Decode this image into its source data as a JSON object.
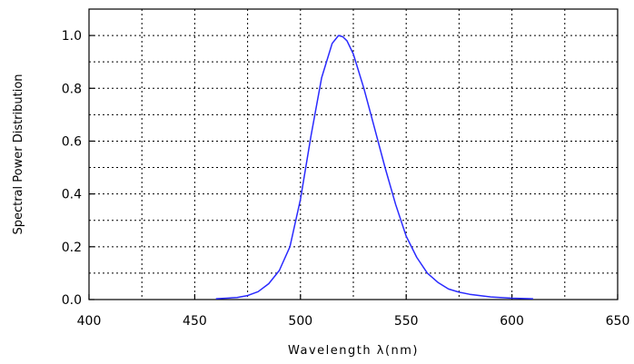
{
  "chart_data": {
    "type": "line",
    "title": "",
    "xlabel": "Wavelength λ(nm)",
    "ylabel": "Spectral Power Distribution",
    "xlim": [
      400,
      650
    ],
    "ylim": [
      0,
      1.1
    ],
    "x_ticks": [
      400,
      450,
      500,
      550,
      600,
      650
    ],
    "x_tick_labels": [
      "400",
      "450",
      "500",
      "550",
      "600",
      "650"
    ],
    "y_ticks": [
      0.0,
      0.2,
      0.4,
      0.6,
      0.8,
      1.0
    ],
    "y_tick_labels": [
      "0.0",
      "0.2",
      "0.4",
      "0.6",
      "0.8",
      "1.0"
    ],
    "grid": true,
    "grid_style": "dotted",
    "legend": "none",
    "series": [
      {
        "color": "#2a2aff",
        "x": [
          460,
          465,
          470,
          475,
          480,
          485,
          490,
          495,
          500,
          505,
          510,
          515,
          518,
          520,
          522,
          525,
          530,
          535,
          540,
          545,
          550,
          555,
          560,
          565,
          570,
          575,
          580,
          590,
          600,
          610
        ],
        "y": [
          0.003,
          0.005,
          0.008,
          0.015,
          0.03,
          0.06,
          0.11,
          0.2,
          0.38,
          0.62,
          0.84,
          0.97,
          1.0,
          0.995,
          0.98,
          0.93,
          0.8,
          0.65,
          0.5,
          0.36,
          0.24,
          0.16,
          0.1,
          0.065,
          0.04,
          0.028,
          0.02,
          0.01,
          0.005,
          0.003
        ]
      }
    ]
  }
}
